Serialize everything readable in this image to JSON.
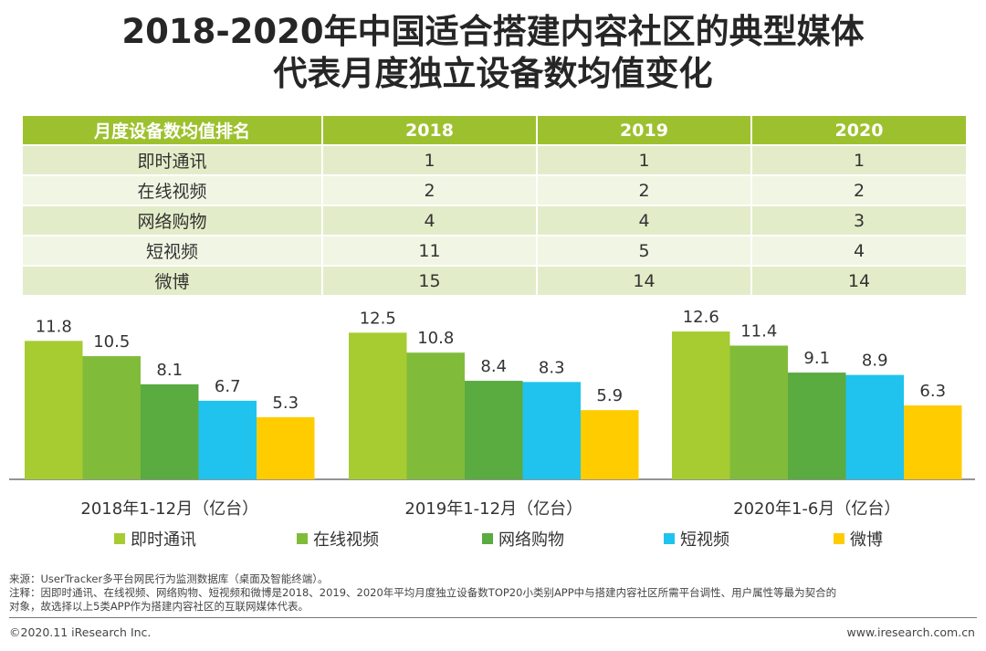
{
  "title": {
    "line1": "2018-2020年中国适合搭建内容社区的典型媒体",
    "line2": "代表月度独立设备数均值变化"
  },
  "table": {
    "headers": [
      "月度设备数均值排名",
      "2018",
      "2019",
      "2020"
    ],
    "rows": [
      [
        "即时通讯",
        "1",
        "1",
        "1"
      ],
      [
        "在线视频",
        "2",
        "2",
        "2"
      ],
      [
        "网络购物",
        "4",
        "4",
        "3"
      ],
      [
        "短视频",
        "11",
        "5",
        "4"
      ],
      [
        "微博",
        "15",
        "14",
        "14"
      ]
    ]
  },
  "chart_data": {
    "type": "bar",
    "categories": [
      "2018年1-12月（亿台）",
      "2019年1-12月（亿台）",
      "2020年1-6月（亿台）"
    ],
    "series": [
      {
        "name": "即时通讯",
        "values": [
          11.8,
          12.5,
          12.6
        ],
        "color": "#a6cc32"
      },
      {
        "name": "在线视频",
        "values": [
          10.5,
          10.8,
          11.4
        ],
        "color": "#80bc3a"
      },
      {
        "name": "网络购物",
        "values": [
          8.1,
          8.4,
          9.1
        ],
        "color": "#5aab40"
      },
      {
        "name": "短视频",
        "values": [
          6.7,
          8.3,
          8.9
        ],
        "color": "#20c3ee"
      },
      {
        "name": "微博",
        "values": [
          5.3,
          5.9,
          6.3
        ],
        "color": "#ffcc00"
      }
    ],
    "ylim": [
      0,
      14
    ],
    "grid": false,
    "legend_position": "bottom"
  },
  "footnote": {
    "source": "来源：UserTracker多平台网民行为监测数据库（桌面及智能终端）。",
    "note_line1": "注释：因即时通讯、在线视频、网络购物、短视频和微博是2018、2019、2020年平均月度独立设备数TOP20小类别APP中与搭建内容社区所需平台调性、用户属性等最为契合的",
    "note_line2": "对象，故选择以上5类APP作为搭建内容社区的互联网媒体代表。"
  },
  "footer": {
    "copyright": "©2020.11 iResearch Inc.",
    "site": "www.iresearch.com.cn"
  }
}
